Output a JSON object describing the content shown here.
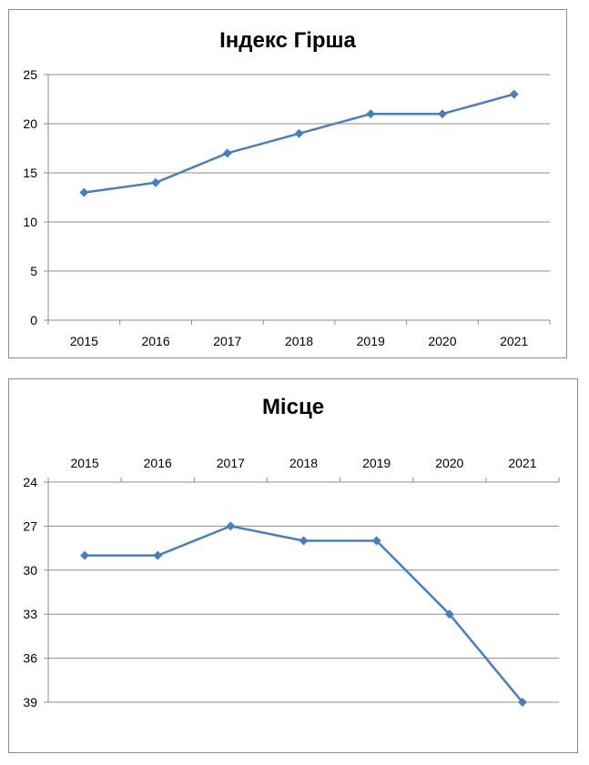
{
  "chart_data": [
    {
      "type": "line",
      "title": "Індекс Гірша",
      "categories": [
        "2015",
        "2016",
        "2017",
        "2018",
        "2019",
        "2020",
        "2021"
      ],
      "series": [
        {
          "values": [
            13,
            14,
            17,
            19,
            21,
            21,
            23
          ]
        }
      ],
      "ylim": [
        0,
        25
      ],
      "yticks": [
        0,
        5,
        10,
        15,
        20,
        25
      ],
      "y_reversed": false,
      "x_axis_position": "bottom",
      "grid": true,
      "line_color": "#4a7ebb",
      "marker": "diamond"
    },
    {
      "type": "line",
      "title": "Місце",
      "categories": [
        "2015",
        "2016",
        "2017",
        "2018",
        "2019",
        "2020",
        "2021"
      ],
      "series": [
        {
          "values": [
            29,
            29,
            27,
            28,
            28,
            33,
            39
          ]
        }
      ],
      "ylim": [
        24,
        39
      ],
      "yticks": [
        24,
        27,
        30,
        33,
        36,
        39
      ],
      "y_reversed": true,
      "x_axis_position": "top",
      "grid": true,
      "line_color": "#4a7ebb",
      "marker": "diamond"
    }
  ]
}
